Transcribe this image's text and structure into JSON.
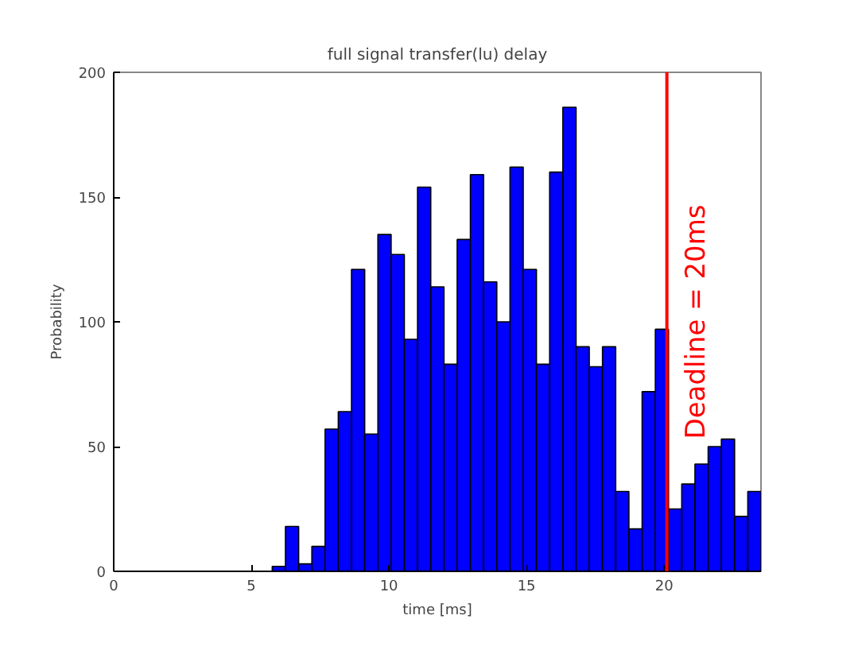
{
  "chart_data": {
    "type": "histogram",
    "title": "full signal transfer(lu) delay",
    "xlabel": "time [ms]",
    "ylabel": "Probability",
    "bins": [
      0,
      0.48,
      0.96,
      1.44,
      1.92,
      2.4,
      2.88,
      3.36,
      3.84,
      4.32,
      4.8,
      5.28,
      5.76,
      6.24,
      6.72,
      7.2,
      7.68,
      8.16,
      8.64,
      9.12,
      9.6,
      10.08,
      10.56,
      11.04,
      11.52,
      12,
      12.48,
      12.96,
      13.44,
      13.92,
      14.4,
      14.88,
      15.36,
      15.84,
      16.32,
      16.8,
      17.28,
      17.76,
      18.24,
      18.72,
      19.2,
      19.68,
      20.16,
      20.64,
      21.12,
      21.6,
      22.08,
      22.56,
      23.04,
      23.52
    ],
    "values": [
      0,
      0,
      0,
      0,
      0,
      0,
      0,
      0,
      0,
      0,
      0,
      0,
      2,
      18,
      3,
      10,
      57,
      64,
      121,
      55,
      135,
      127,
      93,
      154,
      114,
      83,
      133,
      159,
      116,
      100,
      162,
      121,
      83,
      160,
      186,
      90,
      82,
      90,
      32,
      17,
      72,
      97,
      25,
      35,
      43,
      50,
      53,
      22,
      32
    ],
    "color": "#0000ff",
    "xlim": [
      0,
      23.52
    ],
    "ylim": [
      0,
      200
    ],
    "xticks": [
      0,
      5,
      10,
      15,
      20
    ],
    "yticks": [
      0,
      50,
      100,
      150,
      200
    ],
    "grid": false,
    "ref_lines": [
      {
        "axis": "x",
        "value": 20.1,
        "label": "Deadline = 20ms",
        "color": "#ff0000"
      }
    ]
  }
}
